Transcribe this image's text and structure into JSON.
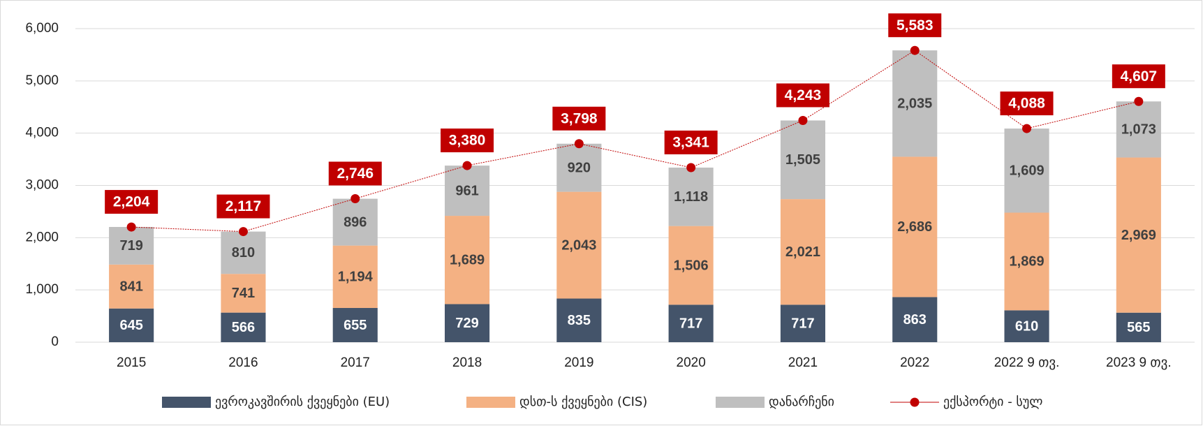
{
  "chart_data": {
    "type": "bar",
    "stacked": true,
    "categories": [
      "2015",
      "2016",
      "2017",
      "2018",
      "2019",
      "2020",
      "2021",
      "2022",
      "2022 9 თვ.",
      "2023 9 თვ."
    ],
    "series": [
      {
        "name": "ევროკავშირის ქვეყნები (EU)",
        "color": "#44546a",
        "values": [
          645,
          566,
          655,
          729,
          835,
          717,
          717,
          863,
          610,
          565
        ],
        "value_labels": [
          "645",
          "566",
          "655",
          "729",
          "835",
          "717",
          "717",
          "863",
          "610",
          "565"
        ]
      },
      {
        "name": "დსთ-ს ქვეყნები (CIS)",
        "color": "#f4b183",
        "values": [
          841,
          741,
          1194,
          1689,
          2043,
          1506,
          2021,
          2686,
          1869,
          2969
        ],
        "value_labels": [
          "841",
          "741",
          "1,194",
          "1,689",
          "2,043",
          "1,506",
          "2,021",
          "2,686",
          "1,869",
          "2,969"
        ]
      },
      {
        "name": "დანარჩენი",
        "color": "#bfbfbf",
        "values": [
          719,
          810,
          896,
          961,
          920,
          1118,
          1505,
          2035,
          1609,
          1073
        ],
        "value_labels": [
          "719",
          "810",
          "896",
          "961",
          "920",
          "1,118",
          "1,505",
          "2,035",
          "1,609",
          "1,073"
        ]
      },
      {
        "name": "ექსპორტი - სულ",
        "type": "line",
        "color": "#c00000",
        "values": [
          2204,
          2117,
          2746,
          3380,
          3798,
          3341,
          4243,
          5583,
          4088,
          4607
        ],
        "value_labels": [
          "2,204",
          "2,117",
          "2,746",
          "3,380",
          "3,798",
          "3,341",
          "4,243",
          "5,583",
          "4,088",
          "4,607"
        ]
      }
    ],
    "ylim": [
      0,
      6000
    ],
    "yticks": [
      0,
      {
        "value": 1000,
        "label": "1,000"
      },
      {
        "value": 2000,
        "label": "2,000"
      },
      {
        "value": 3000,
        "label": "3,000"
      },
      {
        "value": 4000,
        "label": "4,000"
      },
      {
        "value": 5000,
        "label": "5,000"
      },
      {
        "value": 6000,
        "label": "6,000"
      }
    ],
    "grid": true,
    "legend": "bottom"
  }
}
